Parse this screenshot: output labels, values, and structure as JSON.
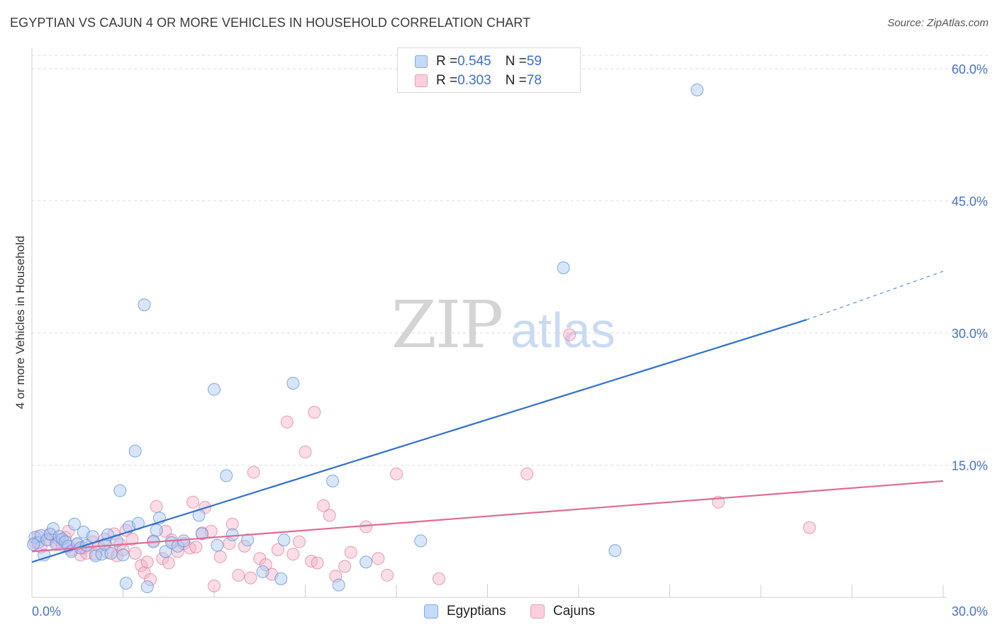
{
  "title": "EGYPTIAN VS CAJUN 4 OR MORE VEHICLES IN HOUSEHOLD CORRELATION CHART",
  "source": "Source: ZipAtlas.com",
  "watermark": {
    "zip": "ZIP",
    "atlas": "atlas"
  },
  "legend": {
    "rows": [
      {
        "r_label": "R = ",
        "r_value": "0.545",
        "n_label": "N = ",
        "n_value": "59",
        "color": "#a9c8f2"
      },
      {
        "r_label": "R = ",
        "r_value": "0.303",
        "n_label": "N = ",
        "n_value": "78",
        "color": "#f5b3c8"
      }
    ]
  },
  "bottom_legend": [
    {
      "label": "Egyptians",
      "color": "#a9c8f2"
    },
    {
      "label": "Cajuns",
      "color": "#f5b3c8"
    }
  ],
  "chart_data": {
    "type": "scatter",
    "title": "EGYPTIAN VS CAJUN 4 OR MORE VEHICLES IN HOUSEHOLD CORRELATION CHART",
    "xlabel": "",
    "ylabel": "4 or more Vehicles in Household",
    "xlim": [
      0,
      30
    ],
    "ylim": [
      0,
      63
    ],
    "x_tick_labels": [
      "0.0%",
      "30.0%"
    ],
    "y_tick_labels": [
      "15.0%",
      "30.0%",
      "45.0%",
      "60.0%"
    ],
    "y_ticks": [
      15,
      30,
      45,
      60
    ],
    "grid": true,
    "legend_position": "top-center",
    "series": [
      {
        "name": "Egyptians",
        "color": "#a9c8f2",
        "stroke": "#5b8fd8",
        "trend": {
          "x": [
            0,
            25.5
          ],
          "y": [
            4.0,
            31.5
          ],
          "dashed_to": [
            30,
            37.0
          ],
          "color": "#2f6fd0"
        },
        "points": [
          [
            0.1,
            6.8
          ],
          [
            0.2,
            6.2
          ],
          [
            0.3,
            7.0
          ],
          [
            0.4,
            4.8
          ],
          [
            0.5,
            6.5
          ],
          [
            0.6,
            7.2
          ],
          [
            0.7,
            7.8
          ],
          [
            0.8,
            6.0
          ],
          [
            0.9,
            6.9
          ],
          [
            1.0,
            6.6
          ],
          [
            1.1,
            6.3
          ],
          [
            1.2,
            5.8
          ],
          [
            1.3,
            5.2
          ],
          [
            1.4,
            8.3
          ],
          [
            1.5,
            6.1
          ],
          [
            1.6,
            5.6
          ],
          [
            1.7,
            7.4
          ],
          [
            1.8,
            5.9
          ],
          [
            2.0,
            6.9
          ],
          [
            2.1,
            4.7
          ],
          [
            2.3,
            4.9
          ],
          [
            2.4,
            6.0
          ],
          [
            2.5,
            7.1
          ],
          [
            2.6,
            5.0
          ],
          [
            2.8,
            6.4
          ],
          [
            2.9,
            12.1
          ],
          [
            3.0,
            4.8
          ],
          [
            3.1,
            1.6
          ],
          [
            3.2,
            8.0
          ],
          [
            3.4,
            16.6
          ],
          [
            3.5,
            8.4
          ],
          [
            3.7,
            33.2
          ],
          [
            3.8,
            1.2
          ],
          [
            4.0,
            6.3
          ],
          [
            4.1,
            7.6
          ],
          [
            4.2,
            9.0
          ],
          [
            4.4,
            5.2
          ],
          [
            4.6,
            6.2
          ],
          [
            4.8,
            5.8
          ],
          [
            5.0,
            6.4
          ],
          [
            5.5,
            9.3
          ],
          [
            5.6,
            7.2
          ],
          [
            6.0,
            23.6
          ],
          [
            6.1,
            5.9
          ],
          [
            6.4,
            13.8
          ],
          [
            6.6,
            7.1
          ],
          [
            7.1,
            6.5
          ],
          [
            7.6,
            2.9
          ],
          [
            8.2,
            2.1
          ],
          [
            8.3,
            6.5
          ],
          [
            8.6,
            24.3
          ],
          [
            9.9,
            13.2
          ],
          [
            10.1,
            1.4
          ],
          [
            11.0,
            4.0
          ],
          [
            12.8,
            6.4
          ],
          [
            17.5,
            37.4
          ],
          [
            19.2,
            5.3
          ],
          [
            21.9,
            57.6
          ],
          [
            0.05,
            6.0
          ]
        ]
      },
      {
        "name": "Cajuns",
        "color": "#f5b3c8",
        "stroke": "#e07fa0",
        "trend": {
          "x": [
            0,
            30
          ],
          "y": [
            5.2,
            13.2
          ],
          "color": "#e06a94"
        },
        "points": [
          [
            0.1,
            6.2
          ],
          [
            0.2,
            6.9
          ],
          [
            0.3,
            5.7
          ],
          [
            0.5,
            6.6
          ],
          [
            0.6,
            7.1
          ],
          [
            0.8,
            6.2
          ],
          [
            0.9,
            6.5
          ],
          [
            1.0,
            5.9
          ],
          [
            1.1,
            6.8
          ],
          [
            1.2,
            7.5
          ],
          [
            1.3,
            5.4
          ],
          [
            1.5,
            6.0
          ],
          [
            1.6,
            4.8
          ],
          [
            1.7,
            5.6
          ],
          [
            1.8,
            5.0
          ],
          [
            2.0,
            6.3
          ],
          [
            2.1,
            4.9
          ],
          [
            2.2,
            5.8
          ],
          [
            2.4,
            6.6
          ],
          [
            2.5,
            5.1
          ],
          [
            2.7,
            7.2
          ],
          [
            2.8,
            4.7
          ],
          [
            2.9,
            6.0
          ],
          [
            3.0,
            5.4
          ],
          [
            3.1,
            7.6
          ],
          [
            3.3,
            6.6
          ],
          [
            3.4,
            5.0
          ],
          [
            3.6,
            3.6
          ],
          [
            3.7,
            2.8
          ],
          [
            3.8,
            4.0
          ],
          [
            3.9,
            2.0
          ],
          [
            4.0,
            6.4
          ],
          [
            4.1,
            10.3
          ],
          [
            4.3,
            4.4
          ],
          [
            4.4,
            7.5
          ],
          [
            4.5,
            3.9
          ],
          [
            4.6,
            6.5
          ],
          [
            4.8,
            5.2
          ],
          [
            5.0,
            6.1
          ],
          [
            5.2,
            5.6
          ],
          [
            5.3,
            10.8
          ],
          [
            5.4,
            5.7
          ],
          [
            5.6,
            7.3
          ],
          [
            5.7,
            10.2
          ],
          [
            5.9,
            7.5
          ],
          [
            6.0,
            1.3
          ],
          [
            6.2,
            4.6
          ],
          [
            6.5,
            6.1
          ],
          [
            6.6,
            8.3
          ],
          [
            6.8,
            2.5
          ],
          [
            7.0,
            5.8
          ],
          [
            7.2,
            2.2
          ],
          [
            7.3,
            14.2
          ],
          [
            7.5,
            4.4
          ],
          [
            7.7,
            3.7
          ],
          [
            7.9,
            2.6
          ],
          [
            8.1,
            5.4
          ],
          [
            8.4,
            19.9
          ],
          [
            8.6,
            4.9
          ],
          [
            8.8,
            6.3
          ],
          [
            9.0,
            16.5
          ],
          [
            9.2,
            4.1
          ],
          [
            9.3,
            21.0
          ],
          [
            9.4,
            3.9
          ],
          [
            9.6,
            10.4
          ],
          [
            9.8,
            9.3
          ],
          [
            10.0,
            2.4
          ],
          [
            10.3,
            3.5
          ],
          [
            10.5,
            5.1
          ],
          [
            11.0,
            8.0
          ],
          [
            11.4,
            4.4
          ],
          [
            11.7,
            2.5
          ],
          [
            12.0,
            14.0
          ],
          [
            13.4,
            2.1
          ],
          [
            16.3,
            14.0
          ],
          [
            17.7,
            29.8
          ],
          [
            22.6,
            10.8
          ],
          [
            25.6,
            7.9
          ]
        ]
      }
    ]
  }
}
